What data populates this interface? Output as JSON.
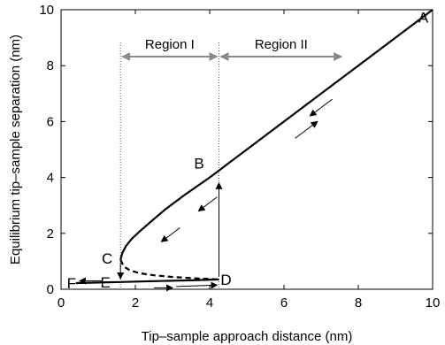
{
  "chart_data": {
    "type": "line",
    "xlabel": "Tip–sample approach distance (nm)",
    "ylabel": "Equilibrium tip–sample separation (nm)",
    "xlim": [
      0,
      10
    ],
    "ylim": [
      0,
      10
    ],
    "xticks": [
      "0",
      "2",
      "4",
      "6",
      "8",
      "10"
    ],
    "yticks": [
      "0",
      "2",
      "4",
      "6",
      "8",
      "10"
    ],
    "grid": false,
    "series": [
      {
        "style": "solid",
        "x": [
          1.6,
          1.65,
          1.75,
          1.9,
          2.1,
          2.4,
          2.8,
          3.3,
          4.0,
          4.25,
          5.0,
          6.0,
          7.0,
          8.0,
          9.0,
          10.0
        ],
        "y": [
          1.05,
          1.3,
          1.55,
          1.8,
          2.05,
          2.4,
          2.85,
          3.35,
          4.0,
          4.25,
          5.0,
          6.0,
          7.0,
          8.0,
          9.0,
          10.0
        ]
      },
      {
        "style": "dashed",
        "x": [
          1.6,
          1.7,
          1.85,
          2.1,
          2.5,
          3.0,
          3.5,
          4.0,
          4.25
        ],
        "y": [
          1.05,
          0.8,
          0.68,
          0.58,
          0.5,
          0.44,
          0.4,
          0.37,
          0.35
        ]
      },
      {
        "style": "solid",
        "x": [
          0.4,
          1.0,
          1.6,
          2.5,
          3.5,
          4.25
        ],
        "y": [
          0.22,
          0.24,
          0.26,
          0.29,
          0.32,
          0.35
        ]
      }
    ],
    "point_labels": [
      {
        "text": "A",
        "x": 9.75,
        "y": 9.8
      },
      {
        "text": "B",
        "x": 4.0,
        "y": 4.0
      },
      {
        "text": "C",
        "x": 1.6,
        "y": 1.05
      },
      {
        "text": "D",
        "x": 4.25,
        "y": 0.35
      },
      {
        "text": "E",
        "x": 1.6,
        "y": 0.26
      },
      {
        "text": "F",
        "x": 0.4,
        "y": 0.22
      }
    ],
    "regions": [
      {
        "label": "Region I",
        "from": 1.6,
        "to": 4.25
      },
      {
        "label": "Region II",
        "from": 4.25,
        "to": 7.6
      }
    ],
    "arrow_color": "#888888"
  }
}
